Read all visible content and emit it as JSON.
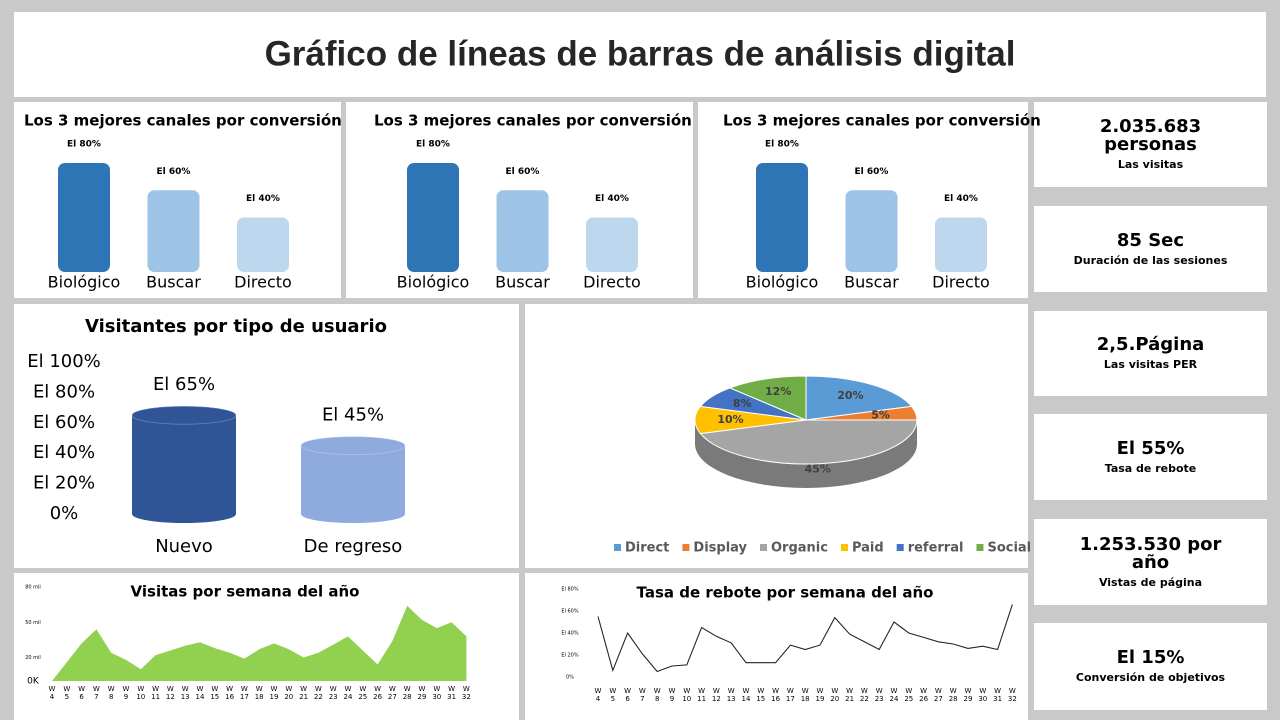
{
  "header": {
    "title": "Gráfico de líneas de barras de análisis digital"
  },
  "kpis": [
    {
      "value": "2.035.683 personas",
      "label": "Las visitas"
    },
    {
      "value": "85 Sec",
      "label": "Duración de las sesiones"
    },
    {
      "value": "2,5.Página",
      "label": "Las visitas PER"
    },
    {
      "value": "El 55%",
      "label": "Tasa de rebote"
    },
    {
      "value": "1.253.530 por año",
      "label": "Vistas de página"
    },
    {
      "value": "El 15%",
      "label": "Conversión de objetivos"
    }
  ],
  "chart_data": [
    {
      "type": "bar",
      "title": "Los 3 mejores canales por conversión",
      "categories": [
        "Biológico",
        "Buscar",
        "Directo"
      ],
      "values": [
        80,
        60,
        40
      ],
      "value_labels": [
        "El 80%",
        "El 60%",
        "El 40%"
      ],
      "colors": [
        "#2e75b6",
        "#9dc3e6",
        "#bdd7ee"
      ]
    },
    {
      "type": "bar",
      "title": "Los 3 mejores canales por conversión",
      "categories": [
        "Biológico",
        "Buscar",
        "Directo"
      ],
      "values": [
        80,
        60,
        40
      ],
      "value_labels": [
        "El 80%",
        "El 60%",
        "El 40%"
      ],
      "colors": [
        "#2e75b6",
        "#9dc3e6",
        "#bdd7ee"
      ]
    },
    {
      "type": "bar",
      "title": "Los 3 mejores canales por conversión",
      "categories": [
        "Biológico",
        "Buscar",
        "Directo"
      ],
      "values": [
        80,
        60,
        40
      ],
      "value_labels": [
        "El 80%",
        "El 60%",
        "El 40%"
      ],
      "colors": [
        "#2e75b6",
        "#9dc3e6",
        "#bdd7ee"
      ]
    },
    {
      "type": "cylinder",
      "title": "Visitantes por tipo de usuario",
      "categories": [
        "Nuevo",
        "De regreso"
      ],
      "values": [
        65,
        45
      ],
      "value_labels": [
        "El 65%",
        "El 45%"
      ],
      "colors": [
        "#2f5597",
        "#8faadc"
      ],
      "ylim": [
        0,
        100
      ],
      "yticks": [
        {
          "value": 100,
          "label": "El 100%"
        },
        {
          "value": 80,
          "label": "El 80%"
        },
        {
          "value": 60,
          "label": "El 60%"
        },
        {
          "value": 40,
          "label": "El 40%"
        },
        {
          "value": 20,
          "label": "El 20%"
        },
        {
          "value": 0,
          "label": "0%"
        }
      ]
    },
    {
      "type": "pie",
      "categories": [
        "Direct",
        "Display",
        "Organic",
        "Paid",
        "referral",
        "Social"
      ],
      "values": [
        20,
        5,
        45,
        10,
        8,
        12
      ],
      "value_labels": [
        "20%",
        "5%",
        "45%",
        "10%",
        "8%",
        "12%"
      ],
      "colors": [
        "#5b9bd5",
        "#ed7d31",
        "#a5a5a5",
        "#ffc000",
        "#4472c4",
        "#70ad47"
      ],
      "legend": "bottom"
    },
    {
      "type": "area",
      "title": "Visitas por semana del año",
      "color": "#92d050",
      "categories": [
        "W 4",
        "W 5",
        "W 6",
        "W 7",
        "W 8",
        "W 9",
        "W 10",
        "W 11",
        "W 12",
        "W 13",
        "W 14",
        "W 15",
        "W 16",
        "W 17",
        "W 18",
        "W 19",
        "W 20",
        "W 21",
        "W 22",
        "W 23",
        "W 24",
        "W 25",
        "W 26",
        "W 27",
        "W 28",
        "W 29",
        "W 30",
        "W 31",
        "W 32"
      ],
      "values": [
        0,
        16000,
        32000,
        44000,
        24000,
        18000,
        10000,
        22000,
        26000,
        30000,
        33000,
        28000,
        24000,
        19000,
        27000,
        32000,
        27000,
        20000,
        24000,
        31000,
        38000,
        26000,
        14000,
        34000,
        64000,
        52000,
        45000,
        50000,
        38000
      ],
      "ylim": [
        0,
        80000
      ],
      "yticks": [
        {
          "value": 0,
          "label": "0K"
        },
        {
          "value": 20000,
          "label": "20 mil"
        },
        {
          "value": 50000,
          "label": "50 mil"
        },
        {
          "value": 80000,
          "label": "80 mil"
        }
      ]
    },
    {
      "type": "line",
      "title": "Tasa de rebote por semana del año",
      "color": "#262626",
      "categories": [
        "W 4",
        "W 5",
        "W 6",
        "W 7",
        "W 8",
        "W 9",
        "W 10",
        "W 11",
        "W 12",
        "W 13",
        "W 14",
        "W 15",
        "W 16",
        "W 17",
        "W 18",
        "W 19",
        "W 20",
        "W 21",
        "W 22",
        "W 23",
        "W 24",
        "W 25",
        "W 26",
        "W 27",
        "W 28",
        "W 29",
        "W 30",
        "W 31",
        "W 32"
      ],
      "values": [
        55,
        6,
        40,
        21,
        5,
        10,
        11,
        45,
        37,
        31,
        13,
        13,
        13,
        29,
        25,
        29,
        54,
        39,
        32,
        25,
        50,
        40,
        36,
        32,
        30,
        26,
        28,
        25,
        66
      ],
      "ylim": [
        0,
        80
      ],
      "yticks": [
        {
          "value": 0,
          "label": "0%"
        },
        {
          "value": 20,
          "label": "El 20%"
        },
        {
          "value": 40,
          "label": "El 40%"
        },
        {
          "value": 60,
          "label": "El 60%"
        },
        {
          "value": 80,
          "label": "El 80%"
        }
      ]
    }
  ]
}
